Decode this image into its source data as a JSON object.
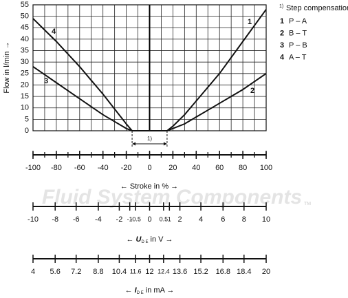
{
  "chart_data": {
    "type": "line",
    "ylabel": "Flow in l/min →",
    "ylim": [
      0,
      55
    ],
    "yticks": [
      0,
      5,
      10,
      15,
      20,
      25,
      30,
      35,
      40,
      45,
      50,
      55
    ],
    "xlim": [
      -100,
      100
    ],
    "xticks": [
      -100,
      -80,
      -60,
      -40,
      -20,
      0,
      20,
      40,
      60,
      80,
      100
    ],
    "x_grid": [
      -100,
      -90,
      -80,
      -70,
      -60,
      -50,
      -40,
      -30,
      -20,
      -10,
      0,
      10,
      20,
      30,
      40,
      50,
      60,
      70,
      80,
      90,
      100
    ],
    "xlabel": "← Stroke in % →",
    "grid": true,
    "series": [
      {
        "name": "1",
        "label": "P – A",
        "color": "#111111",
        "x": [
          -15,
          15,
          20,
          30,
          40,
          50,
          60,
          70,
          80,
          90,
          100
        ],
        "values": [
          0,
          0,
          2,
          7,
          13,
          19,
          25,
          32,
          39,
          46,
          53
        ]
      },
      {
        "name": "2",
        "label": "B – T",
        "color": "#111111",
        "x": [
          -15,
          15,
          20,
          30,
          40,
          50,
          60,
          70,
          80,
          90,
          100
        ],
        "values": [
          0,
          0,
          1,
          3,
          6,
          9,
          12,
          15,
          18,
          21.5,
          25
        ]
      },
      {
        "name": "3",
        "label": "P – B",
        "color": "#111111",
        "x": [
          -100,
          -90,
          -80,
          -70,
          -60,
          -50,
          -40,
          -30,
          -20,
          -15,
          15
        ],
        "values": [
          28,
          24.5,
          21,
          17.5,
          14,
          10.5,
          7,
          4,
          1,
          0,
          0
        ]
      },
      {
        "name": "4",
        "label": "A – T",
        "color": "#111111",
        "x": [
          -100,
          -90,
          -80,
          -70,
          -60,
          -50,
          -40,
          -30,
          -20,
          -15,
          15
        ],
        "values": [
          49,
          44,
          39,
          33.5,
          28,
          22,
          16,
          9.5,
          3,
          0,
          0
        ]
      }
    ],
    "legend_note": "1)",
    "legend_title": "Step compensation",
    "annotation": {
      "text": "1)",
      "from": -15,
      "to": 15
    },
    "voltage_axis": {
      "prefix": "←",
      "symbol": "U",
      "subscript": "D E",
      "suffix": "in V →",
      "ticks": [
        {
          "value": -10,
          "stroke": -100
        },
        {
          "value": -8,
          "stroke": -81
        },
        {
          "value": -6,
          "stroke": -63
        },
        {
          "value": -4,
          "stroke": -44
        },
        {
          "value": -2,
          "stroke": -26
        },
        {
          "value": -1,
          "stroke": -17
        },
        {
          "value": -0.5,
          "stroke": -12
        },
        {
          "value": 0,
          "stroke": 0
        },
        {
          "value": 0.5,
          "stroke": 12
        },
        {
          "value": 1,
          "stroke": 17
        },
        {
          "value": 2,
          "stroke": 26
        },
        {
          "value": 4,
          "stroke": 44
        },
        {
          "value": 6,
          "stroke": 63
        },
        {
          "value": 8,
          "stroke": 81
        },
        {
          "value": 10,
          "stroke": 100
        }
      ]
    },
    "current_axis": {
      "prefix": "←",
      "symbol": "I",
      "subscript": "D E",
      "suffix": "in mA →",
      "ticks": [
        {
          "value": 4,
          "stroke": -100
        },
        {
          "value": 5.6,
          "stroke": -81
        },
        {
          "value": 7.2,
          "stroke": -63
        },
        {
          "value": 8.8,
          "stroke": -44
        },
        {
          "value": 10.4,
          "stroke": -26
        },
        {
          "value": 11.6,
          "stroke": -12
        },
        {
          "value": 12,
          "stroke": 0
        },
        {
          "value": 12.4,
          "stroke": 12
        },
        {
          "value": 13.6,
          "stroke": 26
        },
        {
          "value": 15.2,
          "stroke": 44
        },
        {
          "value": 16.8,
          "stroke": 63
        },
        {
          "value": 18.4,
          "stroke": 81
        },
        {
          "value": 20,
          "stroke": 100
        }
      ]
    },
    "watermark": "Fluid System Components",
    "watermark_mark": "TM"
  }
}
